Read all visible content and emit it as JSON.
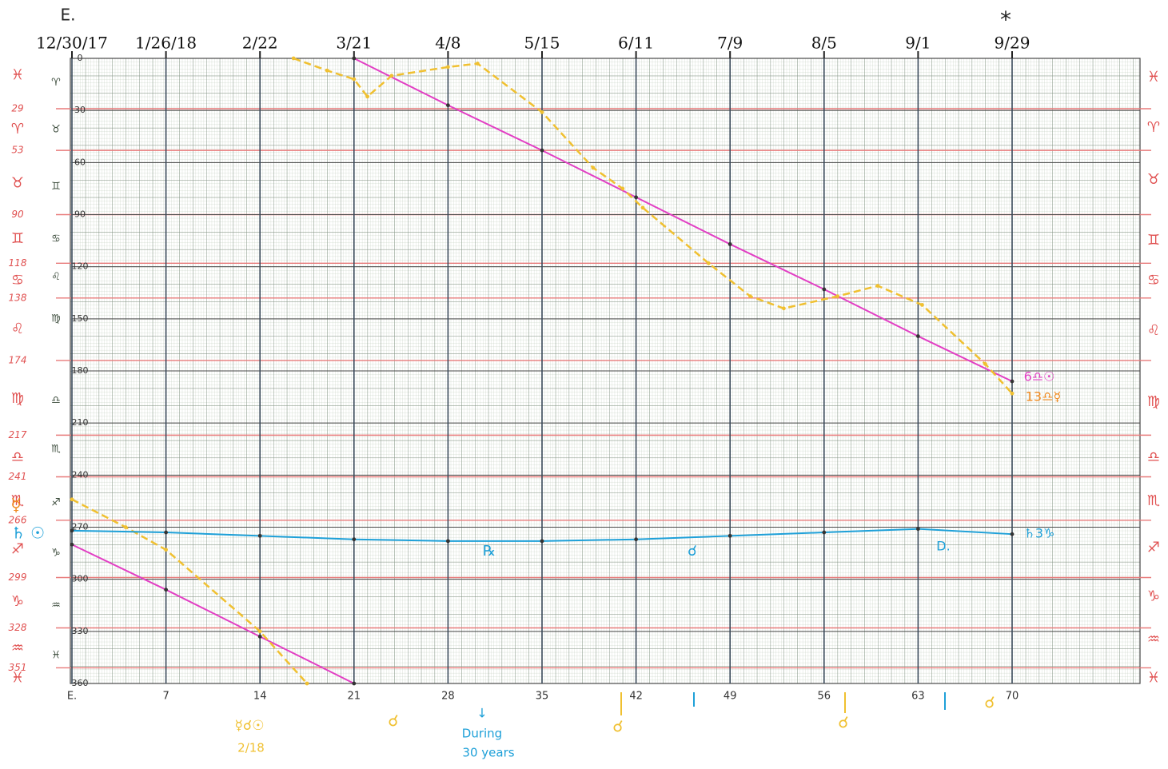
{
  "chart_data": {
    "type": "line",
    "xlim": [
      0,
      79.5
    ],
    "ylim": [
      0,
      360
    ],
    "xticks": [
      {
        "value": 0,
        "label": "E."
      },
      7,
      14,
      21,
      28,
      35,
      42,
      49,
      56,
      63,
      70
    ],
    "x2ticks": [
      {
        "value": 0,
        "label": "12/30/17"
      },
      {
        "value": 7,
        "label": "1/26/18"
      },
      {
        "value": 14,
        "label": "2/22"
      },
      {
        "value": 21,
        "label": "3/21"
      },
      {
        "value": 28,
        "label": "4/8"
      },
      {
        "value": 35,
        "label": "5/15"
      },
      {
        "value": 42,
        "label": "6/11"
      },
      {
        "value": 49,
        "label": "7/9"
      },
      {
        "value": 56,
        "label": "8/5"
      },
      {
        "value": 63,
        "label": "9/1"
      },
      {
        "value": 70,
        "label": "9/29"
      }
    ],
    "yticks": [
      0,
      30,
      60,
      90,
      120,
      150,
      180,
      210,
      240,
      270,
      300,
      330,
      360
    ],
    "sign_lines": [
      29,
      53,
      90,
      118,
      138,
      174,
      217,
      241,
      266,
      299,
      328,
      351
    ],
    "left_signs": [
      {
        "value": 10,
        "label": "♓"
      },
      {
        "value": 41,
        "label": "♈"
      },
      {
        "value": 72,
        "label": "♉"
      },
      {
        "value": 104,
        "label": "♊"
      },
      {
        "value": 128,
        "label": "♋"
      },
      {
        "value": 156,
        "label": "♌"
      },
      {
        "value": 196,
        "label": "♍"
      },
      {
        "value": 230,
        "label": "♎"
      },
      {
        "value": 255,
        "label": "♏"
      },
      {
        "value": 283,
        "label": "♐"
      },
      {
        "value": 313,
        "label": "♑"
      },
      {
        "value": 340,
        "label": "♒"
      },
      {
        "value": 357,
        "label": "♓"
      }
    ],
    "inner_signs": [
      {
        "value": 14,
        "label": "♈"
      },
      {
        "value": 41,
        "label": "♉"
      },
      {
        "value": 74,
        "label": "♊"
      },
      {
        "value": 104,
        "label": "♋"
      },
      {
        "value": 126,
        "label": "♌"
      },
      {
        "value": 150,
        "label": "♍"
      },
      {
        "value": 197,
        "label": "♎"
      },
      {
        "value": 225,
        "label": "♏"
      },
      {
        "value": 256,
        "label": "♐"
      },
      {
        "value": 285,
        "label": "♑"
      },
      {
        "value": 315,
        "label": "♒"
      },
      {
        "value": 344,
        "label": "♓"
      }
    ],
    "right_signs": [
      {
        "value": 11,
        "label": "♓"
      },
      {
        "value": 40,
        "label": "♈"
      },
      {
        "value": 70,
        "label": "♉"
      },
      {
        "value": 105,
        "label": "♊"
      },
      {
        "value": 128,
        "label": "♋"
      },
      {
        "value": 157,
        "label": "♌"
      },
      {
        "value": 198,
        "label": "♍"
      },
      {
        "value": 230,
        "label": "♎"
      },
      {
        "value": 255,
        "label": "♏"
      },
      {
        "value": 282,
        "label": "♐"
      },
      {
        "value": 310,
        "label": "♑"
      },
      {
        "value": 335,
        "label": "♒"
      },
      {
        "value": 357,
        "label": "♓"
      }
    ],
    "series": [
      {
        "color": "#e23fc4",
        "dashed": false,
        "x": [
          21,
          28,
          35,
          42,
          49,
          56,
          63,
          70
        ],
        "values": [
          0,
          27,
          53,
          80,
          107,
          133,
          160,
          186
        ]
      },
      {
        "color": "#e23fc4",
        "dashed": false,
        "x": [
          0,
          7,
          14,
          21
        ],
        "values": [
          280,
          306,
          333,
          360
        ]
      },
      {
        "color": "#f0c030",
        "dashed": true,
        "x": [
          16.5,
          19,
          21,
          22,
          23.8,
          28,
          30.2,
          35,
          38.8,
          41,
          42.5,
          47.4,
          50.5,
          53,
          57,
          60,
          63.3,
          68,
          70
        ],
        "values": [
          0,
          7,
          12,
          22,
          10,
          5,
          3,
          31,
          63,
          75,
          86,
          118,
          137,
          144,
          137,
          131,
          142,
          176,
          193
        ]
      },
      {
        "color": "#f0c030",
        "dashed": true,
        "x": [
          0,
          4,
          7,
          14,
          17.5
        ],
        "values": [
          254,
          270,
          283,
          330,
          360
        ]
      },
      {
        "color": "#1ea0d8",
        "dashed": false,
        "x": [
          0,
          7,
          14,
          21,
          28,
          35,
          42,
          49,
          56,
          63,
          70
        ],
        "values": [
          272,
          273,
          275,
          277,
          278,
          278,
          277,
          275,
          273,
          271,
          274
        ]
      }
    ],
    "annotations": [
      {
        "text": "E.",
        "color": "#222222"
      },
      {
        "text": "*",
        "color": "#222222"
      },
      {
        "text": "♄ ☉",
        "color": "#1ea0d8"
      },
      {
        "text": "♄3♑",
        "color": "#1ea0d8"
      },
      {
        "text": "℞",
        "color": "#1ea0d8"
      },
      {
        "text": "☌",
        "color": "#1ea0d8"
      },
      {
        "text": "D.",
        "color": "#1ea0d8"
      },
      {
        "text": "6♎☉",
        "color": "#e23fc4"
      },
      {
        "text": "13♎☿",
        "color": "#f08a20"
      },
      {
        "text": "☿☌☉",
        "color": "#f0c030"
      },
      {
        "text": "2/18",
        "color": "#f0c030"
      },
      {
        "text": "☌",
        "color": "#f0c030"
      },
      {
        "text": "↓",
        "color": "#1ea0d8"
      },
      {
        "text": "During",
        "color": "#1ea0d8"
      },
      {
        "text": "30 years",
        "color": "#1ea0d8"
      },
      {
        "text": "☌",
        "color": "#f0c030"
      },
      {
        "text": "☌",
        "color": "#f0c030"
      },
      {
        "text": "☌",
        "color": "#f0c030"
      },
      {
        "text": "☿",
        "color": "#f08a20"
      }
    ]
  }
}
